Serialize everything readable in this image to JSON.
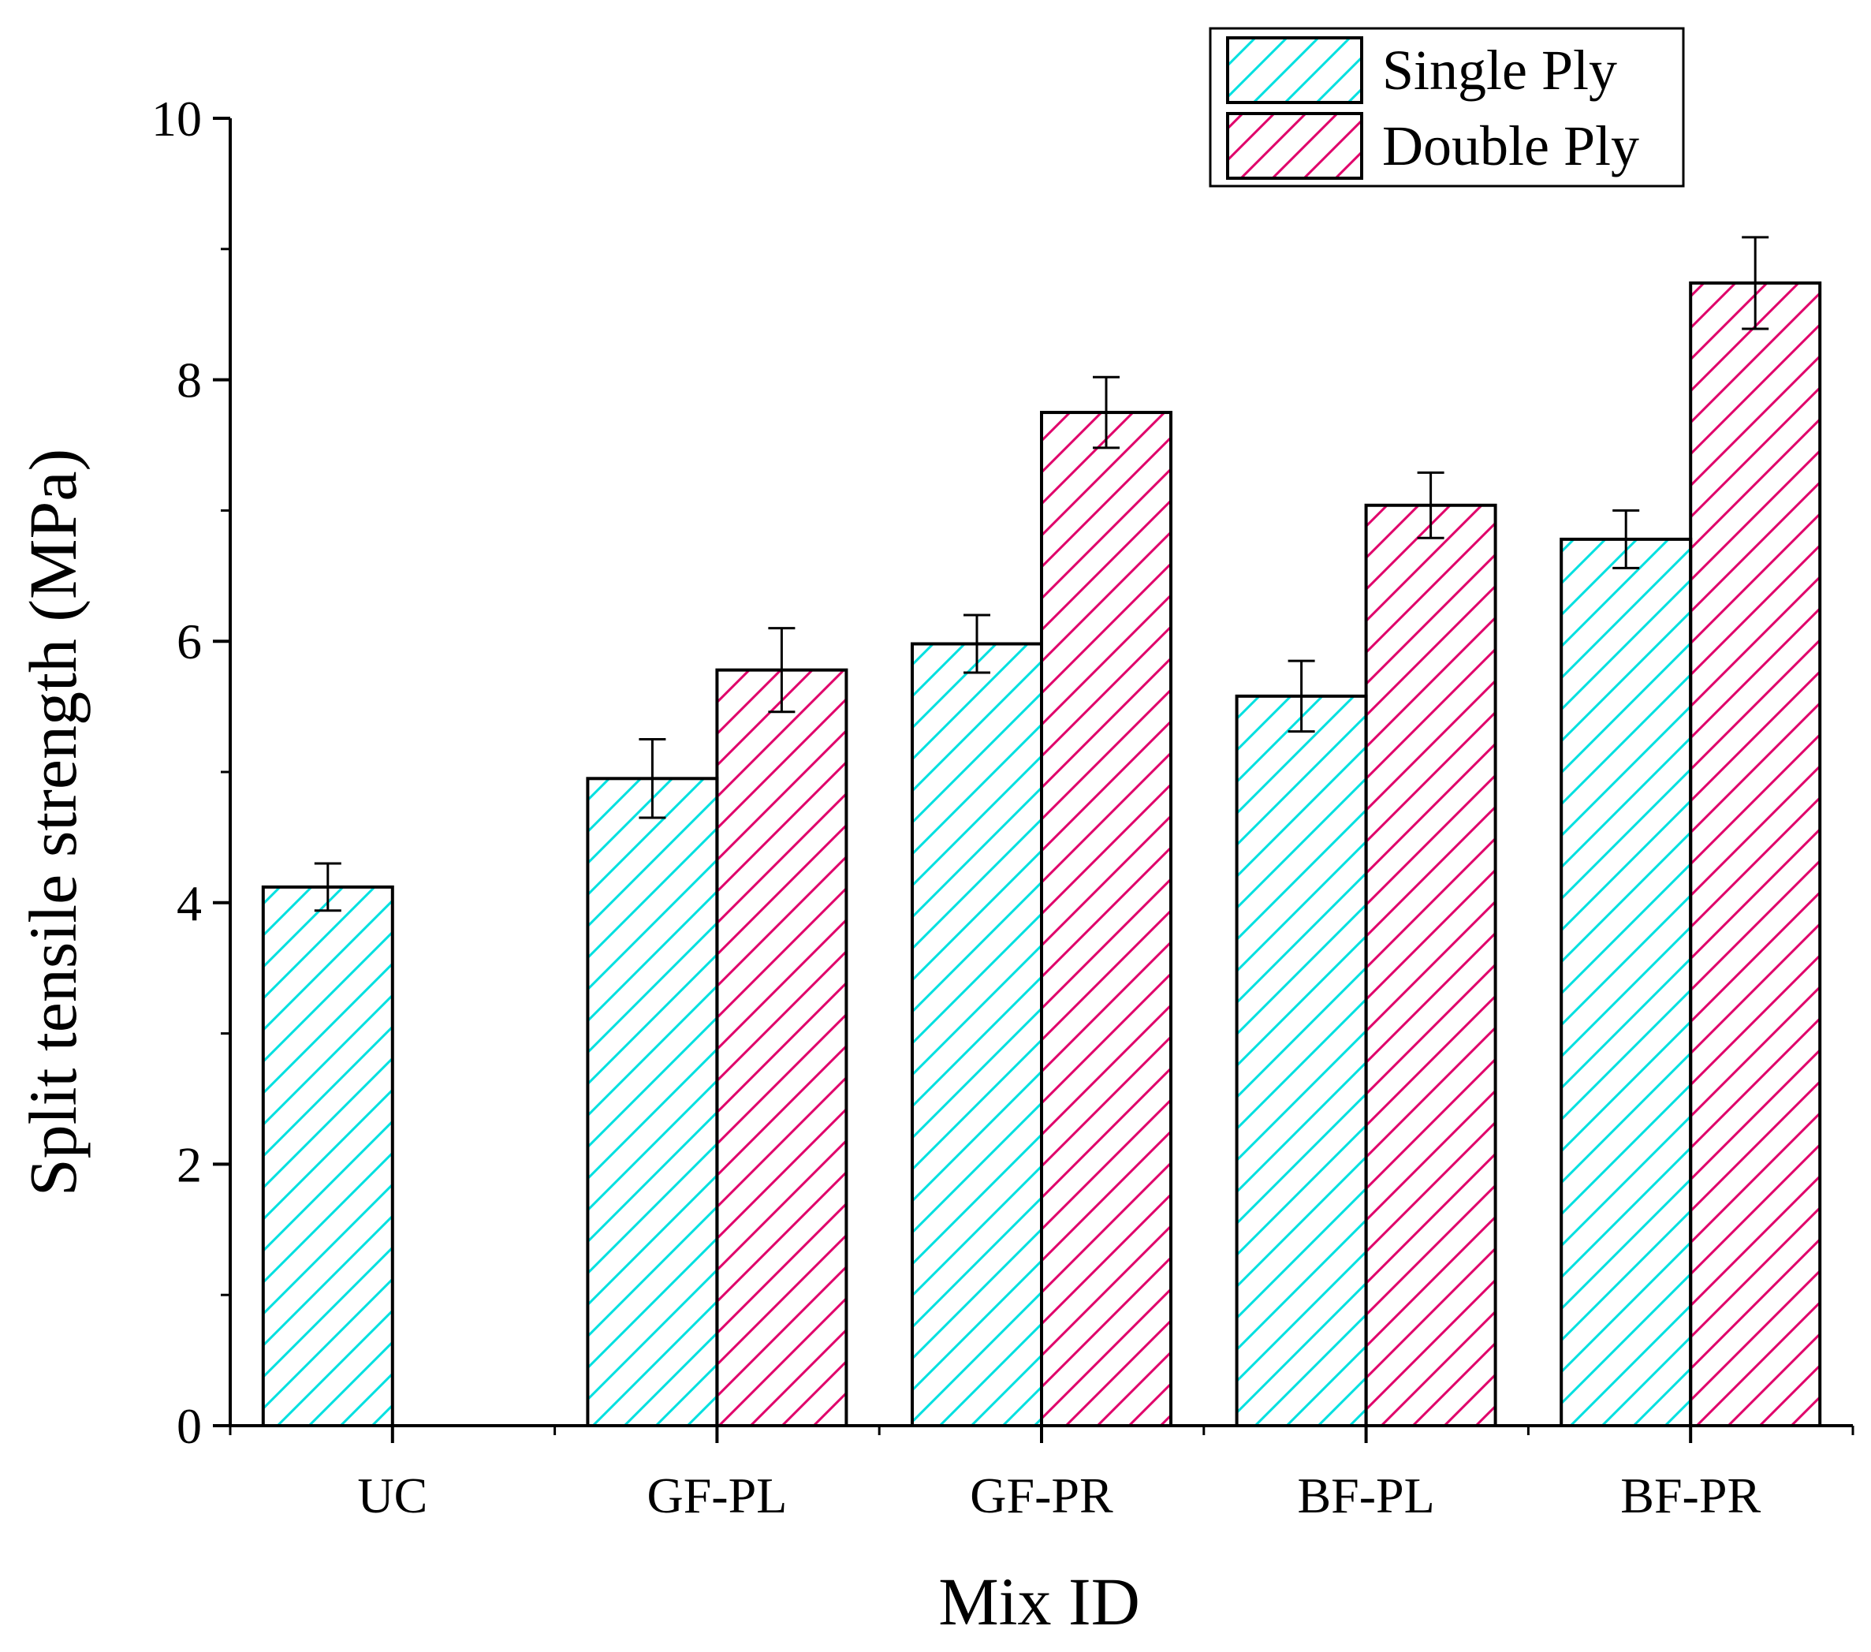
{
  "chart_data": {
    "type": "bar",
    "title": "",
    "xlabel": "Mix ID",
    "ylabel": "Split tensile strength (MPa)",
    "ylim": [
      0,
      10
    ],
    "yticks": [
      "0",
      "2",
      "4",
      "6",
      "8",
      "10"
    ],
    "categories": [
      "UC",
      "GF-PL",
      "GF-PR",
      "BF-PL",
      "BF-PR"
    ],
    "series": [
      {
        "name": "Single Ply",
        "color": "#00e0e0",
        "values": [
          4.12,
          4.95,
          5.98,
          5.58,
          6.78
        ],
        "errors": [
          0.18,
          0.3,
          0.22,
          0.27,
          0.22
        ]
      },
      {
        "name": "Double Ply",
        "color": "#e0006a",
        "values": [
          null,
          5.78,
          7.75,
          7.04,
          8.74
        ],
        "errors": [
          null,
          0.32,
          0.27,
          0.25,
          0.35
        ]
      }
    ],
    "legend_position": "top-right",
    "grid": false
  }
}
